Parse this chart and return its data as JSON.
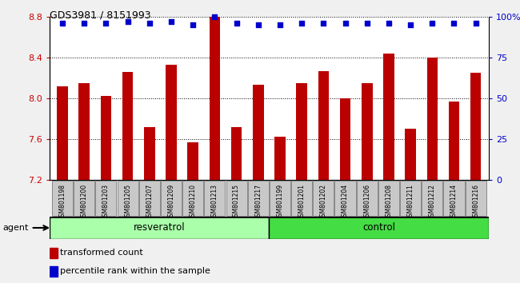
{
  "title": "GDS3981 / 8151993",
  "samples": [
    "GSM801198",
    "GSM801200",
    "GSM801203",
    "GSM801205",
    "GSM801207",
    "GSM801209",
    "GSM801210",
    "GSM801213",
    "GSM801215",
    "GSM801217",
    "GSM801199",
    "GSM801201",
    "GSM801202",
    "GSM801204",
    "GSM801206",
    "GSM801208",
    "GSM801211",
    "GSM801212",
    "GSM801214",
    "GSM801216"
  ],
  "bar_values": [
    8.12,
    8.15,
    8.02,
    8.26,
    7.72,
    8.33,
    7.57,
    8.8,
    7.72,
    8.13,
    7.62,
    8.15,
    8.27,
    8.0,
    8.15,
    8.44,
    7.7,
    8.4,
    7.97,
    8.25
  ],
  "percentile_values": [
    96,
    96,
    96,
    97,
    96,
    97,
    95,
    100,
    96,
    95,
    95,
    96,
    96,
    96,
    96,
    96,
    95,
    96,
    96,
    96
  ],
  "bar_color": "#BB0000",
  "percentile_color": "#0000CC",
  "ylim_left": [
    7.2,
    8.8
  ],
  "ylim_right": [
    0,
    100
  ],
  "yticks_left": [
    7.2,
    7.6,
    8.0,
    8.4,
    8.8
  ],
  "yticks_right": [
    0,
    25,
    50,
    75,
    100
  ],
  "group1_label": "resveratrol",
  "group2_label": "control",
  "group1_count": 10,
  "group2_count": 10,
  "agent_label": "agent",
  "legend_bar_label": "transformed count",
  "legend_dot_label": "percentile rank within the sample",
  "group1_color": "#AAFFAA",
  "group2_color": "#44DD44",
  "tick_label_color": "#CC0000",
  "ylabel_right_color": "#0000CC",
  "plot_bg": "#FFFFFF",
  "tick_box_color": "#C8C8C8"
}
